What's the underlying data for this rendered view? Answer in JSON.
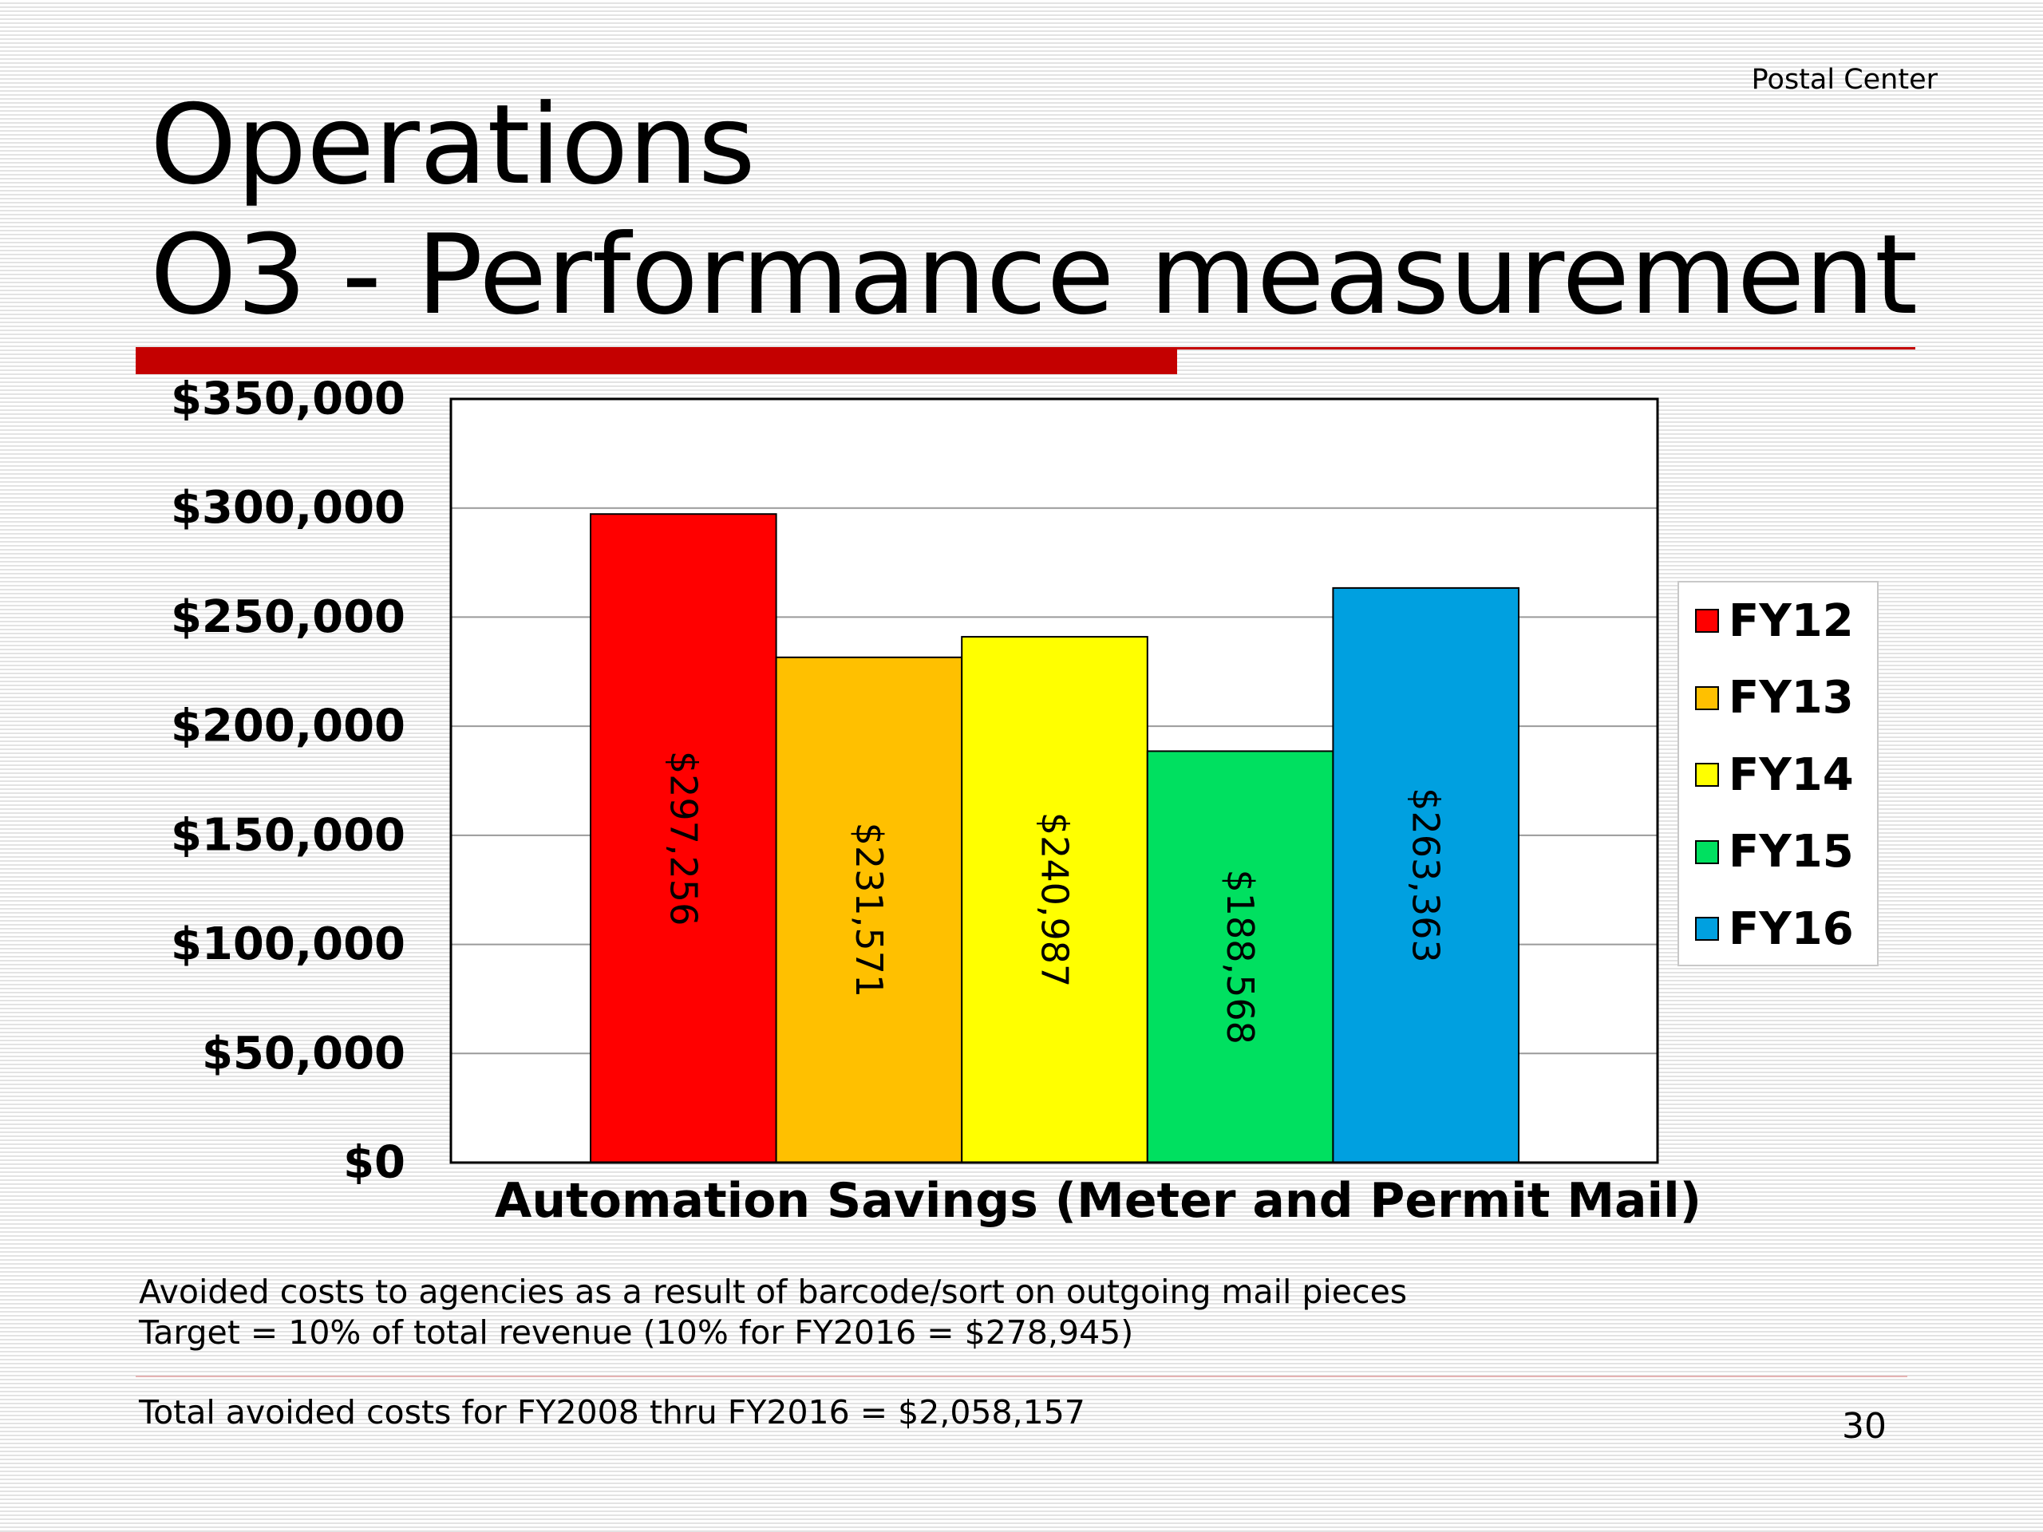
{
  "header": {
    "org_label": "Postal Center"
  },
  "title": {
    "line1": "Operations",
    "line2": "O3 - Performance measurement"
  },
  "colors": {
    "title_rule": "#c40000"
  },
  "chart_data": {
    "type": "bar",
    "categories": [
      "Automation Savings (Meter and Permit Mail)"
    ],
    "series": [
      {
        "name": "FY12",
        "values": [
          297256
        ],
        "color": "#ff0000",
        "label": "$297,256"
      },
      {
        "name": "FY13",
        "values": [
          231571
        ],
        "color": "#ffc000",
        "label": "$231,571"
      },
      {
        "name": "FY14",
        "values": [
          240987
        ],
        "color": "#ffff00",
        "label": "$240,987"
      },
      {
        "name": "FY15",
        "values": [
          188568
        ],
        "color": "#00e060",
        "label": "$188,568"
      },
      {
        "name": "FY16",
        "values": [
          263363
        ],
        "color": "#00a0e0",
        "label": "$263,363"
      }
    ],
    "title": "",
    "xlabel": "Automation Savings (Meter and Permit Mail)",
    "ylabel": "",
    "ylim": [
      0,
      350000
    ],
    "yticks": [
      0,
      50000,
      100000,
      150000,
      200000,
      250000,
      300000,
      350000
    ],
    "ytick_labels": [
      "$0",
      "$50,000",
      "$100,000",
      "$150,000",
      "$200,000",
      "$250,000",
      "$300,000",
      "$350,000"
    ],
    "data_label_orientation": "rotated",
    "grid": true,
    "legend_position": "right"
  },
  "notes": {
    "line1": "Avoided costs to agencies as a result of barcode/sort on outgoing mail pieces",
    "line2": "Target = 10% of total revenue (10% for FY2016 = $278,945)"
  },
  "footer": {
    "total_note": "Total avoided costs for FY2008 thru FY2016 = $2,058,157",
    "page_number": "30"
  }
}
